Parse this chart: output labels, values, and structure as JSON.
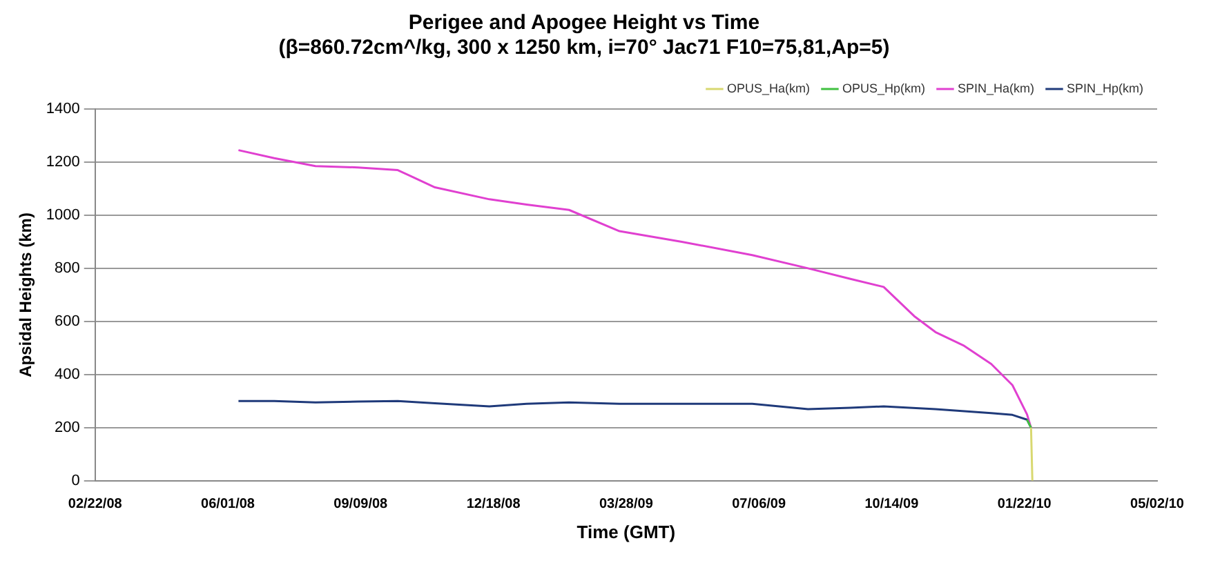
{
  "chart_data": {
    "type": "line",
    "title": "Perigee and Apogee Height vs Time",
    "subtitle": "(β=860.72cm^/kg, 300 x 1250 km, i=70° Jac71 F10=75,81,Ap=5)",
    "xlabel": "Time (GMT)",
    "ylabel": "Apsidal Heights (km)",
    "xlim": [
      "2008-02-22",
      "2010-05-02"
    ],
    "xticks": [
      {
        "value": "2008-02-22",
        "label": "02/22/08"
      },
      {
        "value": "2008-06-01",
        "label": "06/01/08"
      },
      {
        "value": "2008-09-09",
        "label": "09/09/08"
      },
      {
        "value": "2008-12-18",
        "label": "12/18/08"
      },
      {
        "value": "2009-03-28",
        "label": "03/28/09"
      },
      {
        "value": "2009-07-06",
        "label": "07/06/09"
      },
      {
        "value": "2009-10-14",
        "label": "10/14/09"
      },
      {
        "value": "2010-01-22",
        "label": "01/22/10"
      },
      {
        "value": "2010-05-02",
        "label": "05/02/10"
      }
    ],
    "ylim": [
      0,
      1400
    ],
    "yticks": [
      0,
      200,
      400,
      600,
      800,
      1000,
      1200,
      1400
    ],
    "grid": "y",
    "legend": "top right",
    "marker": "none",
    "line_style": "solid",
    "series": [
      {
        "name": "SPIN_Hp(km)",
        "color": "#1f3a7a",
        "x": [
          "2008-06-09",
          "2008-07-06",
          "2008-08-06",
          "2008-09-07",
          "2008-10-07",
          "2008-11-04",
          "2008-12-15",
          "2009-01-12",
          "2009-02-13",
          "2009-03-23",
          "2009-05-09",
          "2009-07-01",
          "2009-08-12",
          "2009-09-13",
          "2009-10-08",
          "2009-11-16",
          "2009-12-28",
          "2010-01-13",
          "2010-01-24",
          "2010-01-27"
        ],
        "values": [
          300,
          300,
          295,
          298,
          300,
          292,
          280,
          290,
          295,
          290,
          290,
          290,
          270,
          275,
          280,
          270,
          255,
          248,
          230,
          200
        ]
      },
      {
        "name": "SPIN_Ha(km)",
        "color": "#e040d0",
        "x": [
          "2008-06-09",
          "2008-07-06",
          "2008-08-06",
          "2008-09-07",
          "2008-10-07",
          "2008-11-04",
          "2008-12-15",
          "2009-01-12",
          "2009-02-13",
          "2009-03-23",
          "2009-05-09",
          "2009-07-01",
          "2009-08-12",
          "2009-09-13",
          "2009-10-08",
          "2009-10-31",
          "2009-11-16",
          "2009-12-07",
          "2009-12-28",
          "2010-01-13",
          "2010-01-24",
          "2010-01-27"
        ],
        "values": [
          1245,
          1215,
          1185,
          1180,
          1170,
          1105,
          1060,
          1040,
          1020,
          940,
          900,
          850,
          800,
          760,
          730,
          620,
          560,
          510,
          440,
          360,
          250,
          200
        ]
      },
      {
        "name": "OPUS_Hp(km)",
        "color": "#40c040",
        "x": [
          "2010-01-24",
          "2010-01-27"
        ],
        "values": [
          230,
          200
        ]
      },
      {
        "name": "OPUS_Ha(km)",
        "color": "#d8d870",
        "x": [
          "2010-01-27",
          "2010-01-28"
        ],
        "values": [
          200,
          0
        ]
      }
    ]
  }
}
